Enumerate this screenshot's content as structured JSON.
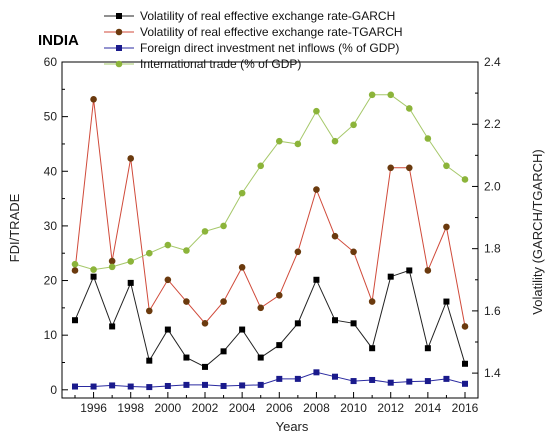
{
  "chart_data": {
    "type": "line",
    "title": "INDIA",
    "xlabel": "Years",
    "ylabel_left": "FDI/TRADE",
    "ylabel_right": "Volatility (GARCH/TGARCH)",
    "x": [
      1995,
      1996,
      1997,
      1998,
      1999,
      2000,
      2001,
      2002,
      2003,
      2004,
      2005,
      2006,
      2007,
      2008,
      2009,
      2010,
      2011,
      2012,
      2013,
      2014,
      2015,
      2016
    ],
    "x_tick_labels": [
      "1996",
      "1998",
      "2000",
      "2002",
      "2004",
      "2006",
      "2008",
      "2010",
      "2012",
      "2014",
      "2016"
    ],
    "x_tick_values": [
      1996,
      1998,
      2000,
      2002,
      2004,
      2006,
      2008,
      2010,
      2012,
      2014,
      2016
    ],
    "xlim": [
      1994.3,
      2016.7
    ],
    "ylim_left": [
      -1.5,
      60
    ],
    "y_left_ticks": [
      "0",
      "10",
      "20",
      "30",
      "40",
      "50",
      "60"
    ],
    "y_left_tick_values": [
      0,
      10,
      20,
      30,
      40,
      50,
      60
    ],
    "ylim_right": [
      1.32,
      2.4
    ],
    "y_right_ticks": [
      "1.4",
      "1.6",
      "1.8",
      "2.0",
      "2.2",
      "2.4"
    ],
    "y_right_tick_values": [
      1.4,
      1.6,
      1.8,
      2.0,
      2.2,
      2.4
    ],
    "legend_position": "top",
    "grid": false,
    "series": [
      {
        "name": "Volatility of real effective exchange rate-GARCH",
        "axis": "right",
        "color": "#000000",
        "line_color": "#222222",
        "marker": "square",
        "values": [
          1.57,
          1.71,
          1.55,
          1.69,
          1.44,
          1.54,
          1.45,
          1.42,
          1.47,
          1.54,
          1.45,
          1.49,
          1.56,
          1.7,
          1.57,
          1.56,
          1.48,
          1.71,
          1.73,
          1.48,
          1.63,
          1.43
        ]
      },
      {
        "name": "Volatility of real effective exchange rate-TGARCH",
        "axis": "right",
        "color": "#6b3a0e",
        "line_color": "#d04a3a",
        "marker": "circle",
        "values": [
          1.73,
          2.28,
          1.76,
          2.09,
          1.6,
          1.7,
          1.63,
          1.56,
          1.63,
          1.74,
          1.61,
          1.65,
          1.79,
          1.99,
          1.84,
          1.79,
          1.63,
          2.06,
          2.06,
          1.73,
          1.87,
          1.55
        ]
      },
      {
        "name": "Foreign direct investment net inflows (% of GDP)",
        "axis": "left",
        "color": "#1a1a8c",
        "line_color": "#2a2aa0",
        "marker": "square",
        "values": [
          0.6,
          0.6,
          0.8,
          0.6,
          0.5,
          0.7,
          0.9,
          0.9,
          0.7,
          0.8,
          0.9,
          2.0,
          2.0,
          3.2,
          2.4,
          1.6,
          1.8,
          1.3,
          1.5,
          1.6,
          2.0,
          1.1
        ]
      },
      {
        "name": "International trade (% of GDP)",
        "axis": "left",
        "color": "#8cb43a",
        "line_color": "#a6c86a",
        "marker": "circle",
        "values": [
          23,
          22,
          22.5,
          23.5,
          25,
          26.5,
          25.5,
          29,
          30,
          36,
          41,
          45.5,
          45,
          51,
          45.5,
          48.5,
          54,
          54,
          51.5,
          46,
          41,
          38.5
        ]
      }
    ]
  }
}
